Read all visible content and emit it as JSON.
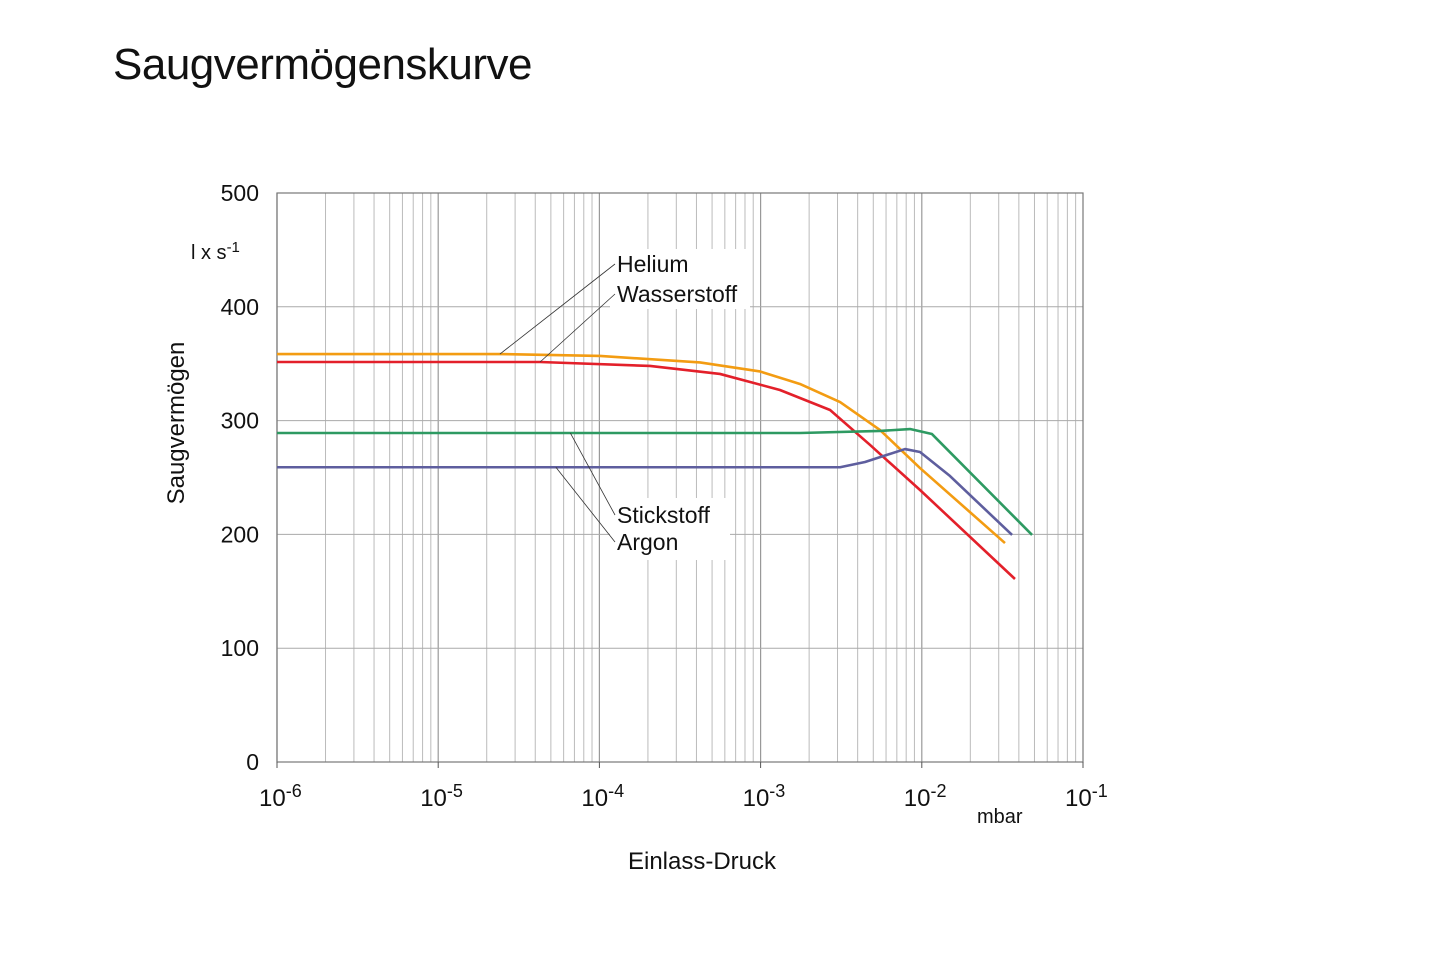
{
  "chart_data": {
    "type": "line",
    "title": "Saugvermögenskurve",
    "xlabel": "Einlass-Druck",
    "xunit": "mbar",
    "ylabel": "Saugvermögen",
    "yunit": {
      "base": "l x s",
      "exp": "-1"
    },
    "xscale": "log",
    "xlim_log10": [
      -6,
      -1
    ],
    "ylim": [
      0,
      500
    ],
    "grid": true,
    "xticks": [
      {
        "base": "10",
        "exp": "-6"
      },
      {
        "base": "10",
        "exp": "-5"
      },
      {
        "base": "10",
        "exp": "-4"
      },
      {
        "base": "10",
        "exp": "-3"
      },
      {
        "base": "10",
        "exp": "-2"
      },
      {
        "base": "10",
        "exp": "-1"
      }
    ],
    "yticks": [
      "0",
      "100",
      "200",
      "300",
      "400",
      "500"
    ],
    "series": [
      {
        "name": "Helium",
        "color": "#f39c12",
        "log10_x": [
          -6,
          -4.617,
          -3.996,
          -3.376,
          -3.004,
          -2.756,
          -2.507,
          -2.259,
          -2.011,
          -1.484
        ],
        "y": [
          358.5,
          358.5,
          356.8,
          351.1,
          343.2,
          332.2,
          316.3,
          291.7,
          258.3,
          192.4
        ]
      },
      {
        "name": "Wasserstoff",
        "color": "#e3202a",
        "log10_x": [
          -6,
          -4.368,
          -3.686,
          -3.252,
          -2.88,
          -2.569,
          -2.321,
          -2.011,
          -1.422
        ],
        "y": [
          351.5,
          351.5,
          348.0,
          341.0,
          326.9,
          309.3,
          278.6,
          239.0,
          160.8
        ]
      },
      {
        "name": "Stickstoff",
        "color": "#2e9a62",
        "log10_x": [
          -6,
          -2.756,
          -2.259,
          -2.073,
          -1.937,
          -1.316
        ],
        "y": [
          289.1,
          289.1,
          290.9,
          292.6,
          288.2,
          199.5
        ]
      },
      {
        "name": "Argon",
        "color": "#5e5e9e",
        "log10_x": [
          -6,
          -2.507,
          -2.352,
          -2.104,
          -2.011,
          -1.825,
          -1.44
        ],
        "y": [
          259.0,
          259.0,
          263.6,
          275.0,
          272.4,
          251.3,
          199.5
        ]
      }
    ]
  }
}
